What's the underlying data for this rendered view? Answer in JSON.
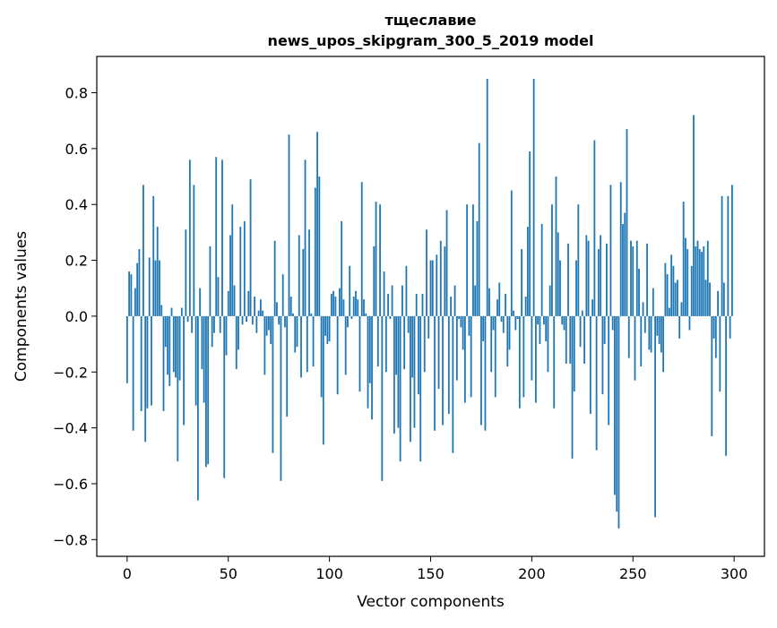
{
  "chart_data": {
    "type": "bar",
    "title": "тщеславие",
    "subtitle": "news_upos_skipgram_300_5_2019 model",
    "xlabel": "Vector components",
    "ylabel": "Components values",
    "xlim": [
      -15,
      315
    ],
    "ylim": [
      -0.86,
      0.93
    ],
    "x_ticks": [
      0,
      50,
      100,
      150,
      200,
      250,
      300
    ],
    "x_tick_labels": [
      "0",
      "50",
      "100",
      "150",
      "200",
      "250",
      "300"
    ],
    "y_ticks": [
      -0.8,
      -0.6,
      -0.4,
      -0.2,
      0.0,
      0.2,
      0.4,
      0.6,
      0.8
    ],
    "y_tick_labels": [
      "−0.8",
      "−0.6",
      "−0.4",
      "−0.2",
      "0.0",
      "0.2",
      "0.4",
      "0.6",
      "0.8"
    ],
    "grid": false,
    "bar_color": "#1f77b4",
    "values": [
      -0.24,
      0.16,
      0.15,
      -0.41,
      0.1,
      0.19,
      0.24,
      -0.34,
      0.47,
      -0.45,
      -0.33,
      0.21,
      -0.32,
      0.43,
      0.2,
      0.32,
      0.2,
      0.04,
      -0.34,
      -0.11,
      -0.21,
      -0.25,
      0.03,
      -0.2,
      -0.22,
      -0.52,
      -0.23,
      0.03,
      -0.39,
      0.31,
      -0.02,
      0.56,
      -0.06,
      0.47,
      -0.32,
      -0.66,
      0.1,
      -0.19,
      -0.31,
      -0.54,
      -0.53,
      0.25,
      -0.11,
      -0.06,
      0.57,
      0.14,
      -0.06,
      0.56,
      -0.58,
      -0.14,
      0.09,
      0.29,
      0.4,
      0.11,
      -0.19,
      -0.12,
      0.32,
      -0.03,
      0.34,
      -0.02,
      0.09,
      0.49,
      -0.03,
      0.07,
      -0.06,
      0.02,
      0.06,
      0.02,
      -0.21,
      -0.07,
      -0.05,
      -0.1,
      -0.49,
      0.27,
      0.05,
      -0.03,
      -0.59,
      0.15,
      -0.04,
      -0.36,
      0.65,
      0.07,
      0.01,
      -0.13,
      -0.11,
      0.29,
      -0.22,
      0.24,
      0.56,
      -0.2,
      0.31,
      0.01,
      -0.18,
      0.46,
      0.66,
      0.5,
      -0.29,
      -0.46,
      -0.07,
      -0.1,
      -0.09,
      0.08,
      0.09,
      0.07,
      -0.28,
      0.1,
      0.34,
      0.06,
      -0.21,
      -0.04,
      0.18,
      -0.01,
      0.07,
      0.09,
      0.06,
      -0.27,
      0.48,
      0.06,
      0.01,
      -0.33,
      -0.24,
      -0.37,
      0.25,
      0.41,
      -0.18,
      0.4,
      -0.59,
      0.16,
      -0.2,
      0.08,
      -0.01,
      0.11,
      -0.42,
      -0.21,
      -0.4,
      -0.52,
      0.11,
      -0.19,
      0.18,
      -0.06,
      -0.45,
      -0.22,
      -0.4,
      0.08,
      -0.28,
      -0.52,
      0.08,
      -0.2,
      0.31,
      -0.08,
      0.2,
      0.2,
      -0.41,
      0.22,
      -0.26,
      0.27,
      -0.39,
      0.25,
      0.38,
      -0.35,
      0.07,
      -0.49,
      0.11,
      -0.23,
      -0.01,
      -0.04,
      -0.12,
      -0.31,
      0.4,
      -0.07,
      -0.29,
      0.4,
      0.11,
      0.34,
      0.62,
      -0.39,
      -0.09,
      -0.41,
      0.85,
      0.1,
      -0.2,
      -0.05,
      -0.29,
      0.06,
      0.12,
      -0.02,
      -0.06,
      0.08,
      -0.18,
      -0.12,
      0.45,
      0.02,
      -0.05,
      -0.01,
      -0.33,
      0.24,
      -0.29,
      0.07,
      0.32,
      0.59,
      -0.23,
      0.85,
      -0.31,
      -0.03,
      -0.1,
      0.33,
      -0.03,
      -0.09,
      -0.2,
      0.11,
      0.4,
      -0.33,
      0.5,
      0.3,
      0.2,
      -0.03,
      -0.05,
      -0.17,
      0.26,
      -0.17,
      -0.51,
      -0.27,
      0.2,
      0.4,
      -0.11,
      0.02,
      -0.17,
      0.29,
      0.27,
      -0.35,
      0.06,
      0.63,
      -0.48,
      0.24,
      0.29,
      -0.28,
      -0.1,
      0.26,
      -0.39,
      0.47,
      -0.05,
      -0.64,
      -0.7,
      -0.76,
      0.48,
      0.33,
      0.37,
      0.67,
      -0.15,
      0.27,
      0.25,
      -0.23,
      0.27,
      0.17,
      -0.18,
      0.05,
      -0.06,
      0.26,
      -0.12,
      -0.13,
      0.1,
      -0.72,
      -0.07,
      -0.1,
      -0.13,
      -0.2,
      0.19,
      0.15,
      0.03,
      0.22,
      0.18,
      0.12,
      0.13,
      -0.08,
      0.05,
      0.41,
      0.28,
      0.24,
      -0.05,
      0.18,
      0.72,
      0.25,
      0.27,
      0.24,
      0.23,
      0.25,
      0.13,
      0.27,
      0.12,
      -0.43,
      -0.08,
      -0.15,
      0.09,
      -0.27,
      0.43,
      0.12,
      -0.5,
      0.43,
      -0.08,
      0.47
    ]
  }
}
